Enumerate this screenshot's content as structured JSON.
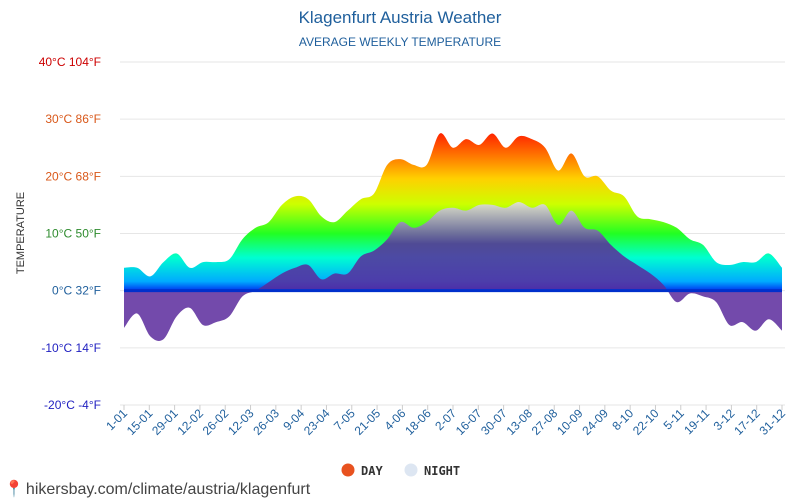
{
  "header": {
    "title": "Klagenfurt Austria Weather",
    "subtitle": "AVERAGE WEEKLY TEMPERATURE"
  },
  "footer": {
    "url": "hikersbay.com/climate/austria/klagenfurt"
  },
  "colors": {
    "title": "#1f5f9c",
    "tick_blue": "#1f5f9c",
    "day_legend": "#e8521f",
    "night_legend": "#dde6f2",
    "ytick_colors": [
      "#cc0000",
      "#d9581a",
      "#d9581a",
      "#2e8b2e",
      "#1f5f9c",
      "#1f1fc0",
      "#1f1fc0"
    ]
  },
  "chart_data": {
    "type": "area",
    "title": "Klagenfurt Austria Weather",
    "subtitle": "AVERAGE WEEKLY TEMPERATURE",
    "ylabel": "TEMPERATURE",
    "ylim": [
      -20,
      40
    ],
    "yticks": [
      {
        "value": 40,
        "label": "40°C 104°F"
      },
      {
        "value": 30,
        "label": "30°C 86°F"
      },
      {
        "value": 20,
        "label": "20°C 68°F"
      },
      {
        "value": 10,
        "label": "10°C 50°F"
      },
      {
        "value": 0,
        "label": "0°C 32°F"
      },
      {
        "value": -10,
        "label": "-10°C 14°F"
      },
      {
        "value": -20,
        "label": "-20°C -4°F"
      }
    ],
    "x_tick_labels": [
      "1-01",
      "15-01",
      "29-01",
      "12-02",
      "26-02",
      "12-03",
      "26-03",
      "9-04",
      "23-04",
      "7-05",
      "21-05",
      "4-06",
      "18-06",
      "2-07",
      "16-07",
      "30-07",
      "13-08",
      "27-08",
      "10-09",
      "24-09",
      "8-10",
      "22-10",
      "5-11",
      "19-11",
      "3-12",
      "17-12",
      "31-12"
    ],
    "grid": true,
    "legend_position": "bottom",
    "series": [
      {
        "name": "DAY",
        "values": [
          4,
          4,
          2.5,
          5,
          6.5,
          4,
          5,
          5,
          5.5,
          9,
          11,
          12,
          15,
          16.5,
          16,
          13,
          12,
          14,
          16,
          17,
          22,
          23,
          22,
          22,
          27.5,
          25,
          26.5,
          25.5,
          27.5,
          25,
          27,
          26.5,
          25,
          21,
          24,
          20,
          20,
          17.5,
          16.5,
          13,
          12.5,
          12,
          11,
          9,
          8,
          5,
          4.5,
          5,
          5,
          6.5,
          4
        ]
      },
      {
        "name": "NIGHT",
        "values": [
          -6.5,
          -4,
          -8,
          -8.5,
          -4.5,
          -3,
          -6,
          -5.5,
          -4.5,
          -1,
          0,
          1.5,
          3,
          4,
          4.5,
          2,
          3,
          3,
          6,
          7,
          9,
          12,
          11,
          12,
          14,
          14.5,
          14,
          15,
          15,
          14.5,
          15.5,
          14.5,
          15,
          11.5,
          14,
          11,
          10.5,
          8,
          6,
          4.5,
          3,
          1,
          -2,
          -0.5,
          -1,
          -2,
          -6,
          -5.5,
          -7,
          -5,
          -7
        ]
      }
    ]
  }
}
